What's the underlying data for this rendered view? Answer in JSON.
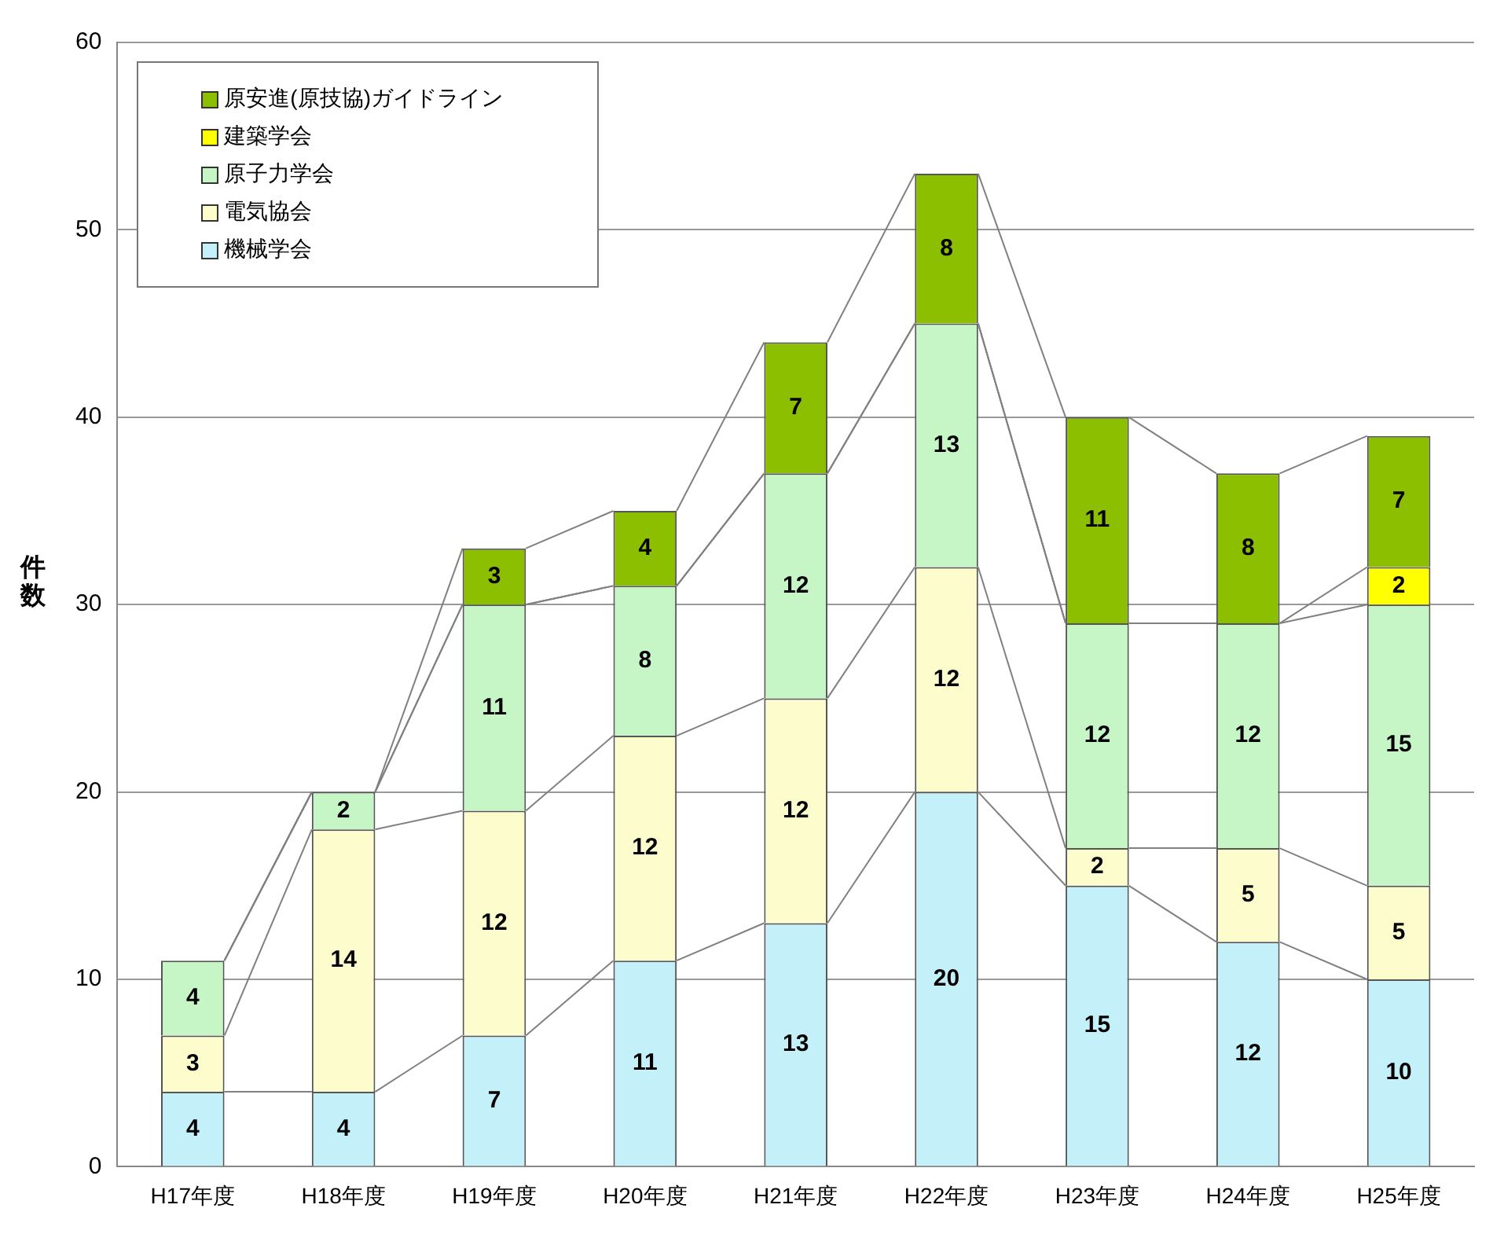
{
  "chart_data": {
    "type": "bar",
    "stacked": true,
    "ylabel": "件数",
    "categories": [
      "H17年度",
      "H18年度",
      "H19年度",
      "H20年度",
      "H21年度",
      "H22年度",
      "H23年度",
      "H24年度",
      "H25年度"
    ],
    "series": [
      {
        "name": "機械学会",
        "color": "#c4f0fa",
        "values": [
          4,
          4,
          7,
          11,
          13,
          20,
          15,
          12,
          10
        ]
      },
      {
        "name": "電気協会",
        "color": "#fcfccc",
        "values": [
          3,
          14,
          12,
          12,
          12,
          12,
          2,
          5,
          5
        ]
      },
      {
        "name": "原子力学会",
        "color": "#c6f5c6",
        "values": [
          4,
          2,
          11,
          8,
          12,
          13,
          12,
          12,
          15
        ]
      },
      {
        "name": "建築学会",
        "color": "#ffff00",
        "values": [
          null,
          null,
          null,
          null,
          null,
          null,
          null,
          null,
          2
        ]
      },
      {
        "name": "原安進(原技協)ガイドライン",
        "color": "#8cbf00",
        "values": [
          null,
          null,
          3,
          4,
          7,
          8,
          11,
          8,
          7
        ]
      }
    ],
    "ylim": [
      0,
      60
    ],
    "yticks": [
      0,
      10,
      20,
      30,
      40,
      50,
      60
    ],
    "grid": "y",
    "legend": "top left",
    "data_labels": true
  }
}
